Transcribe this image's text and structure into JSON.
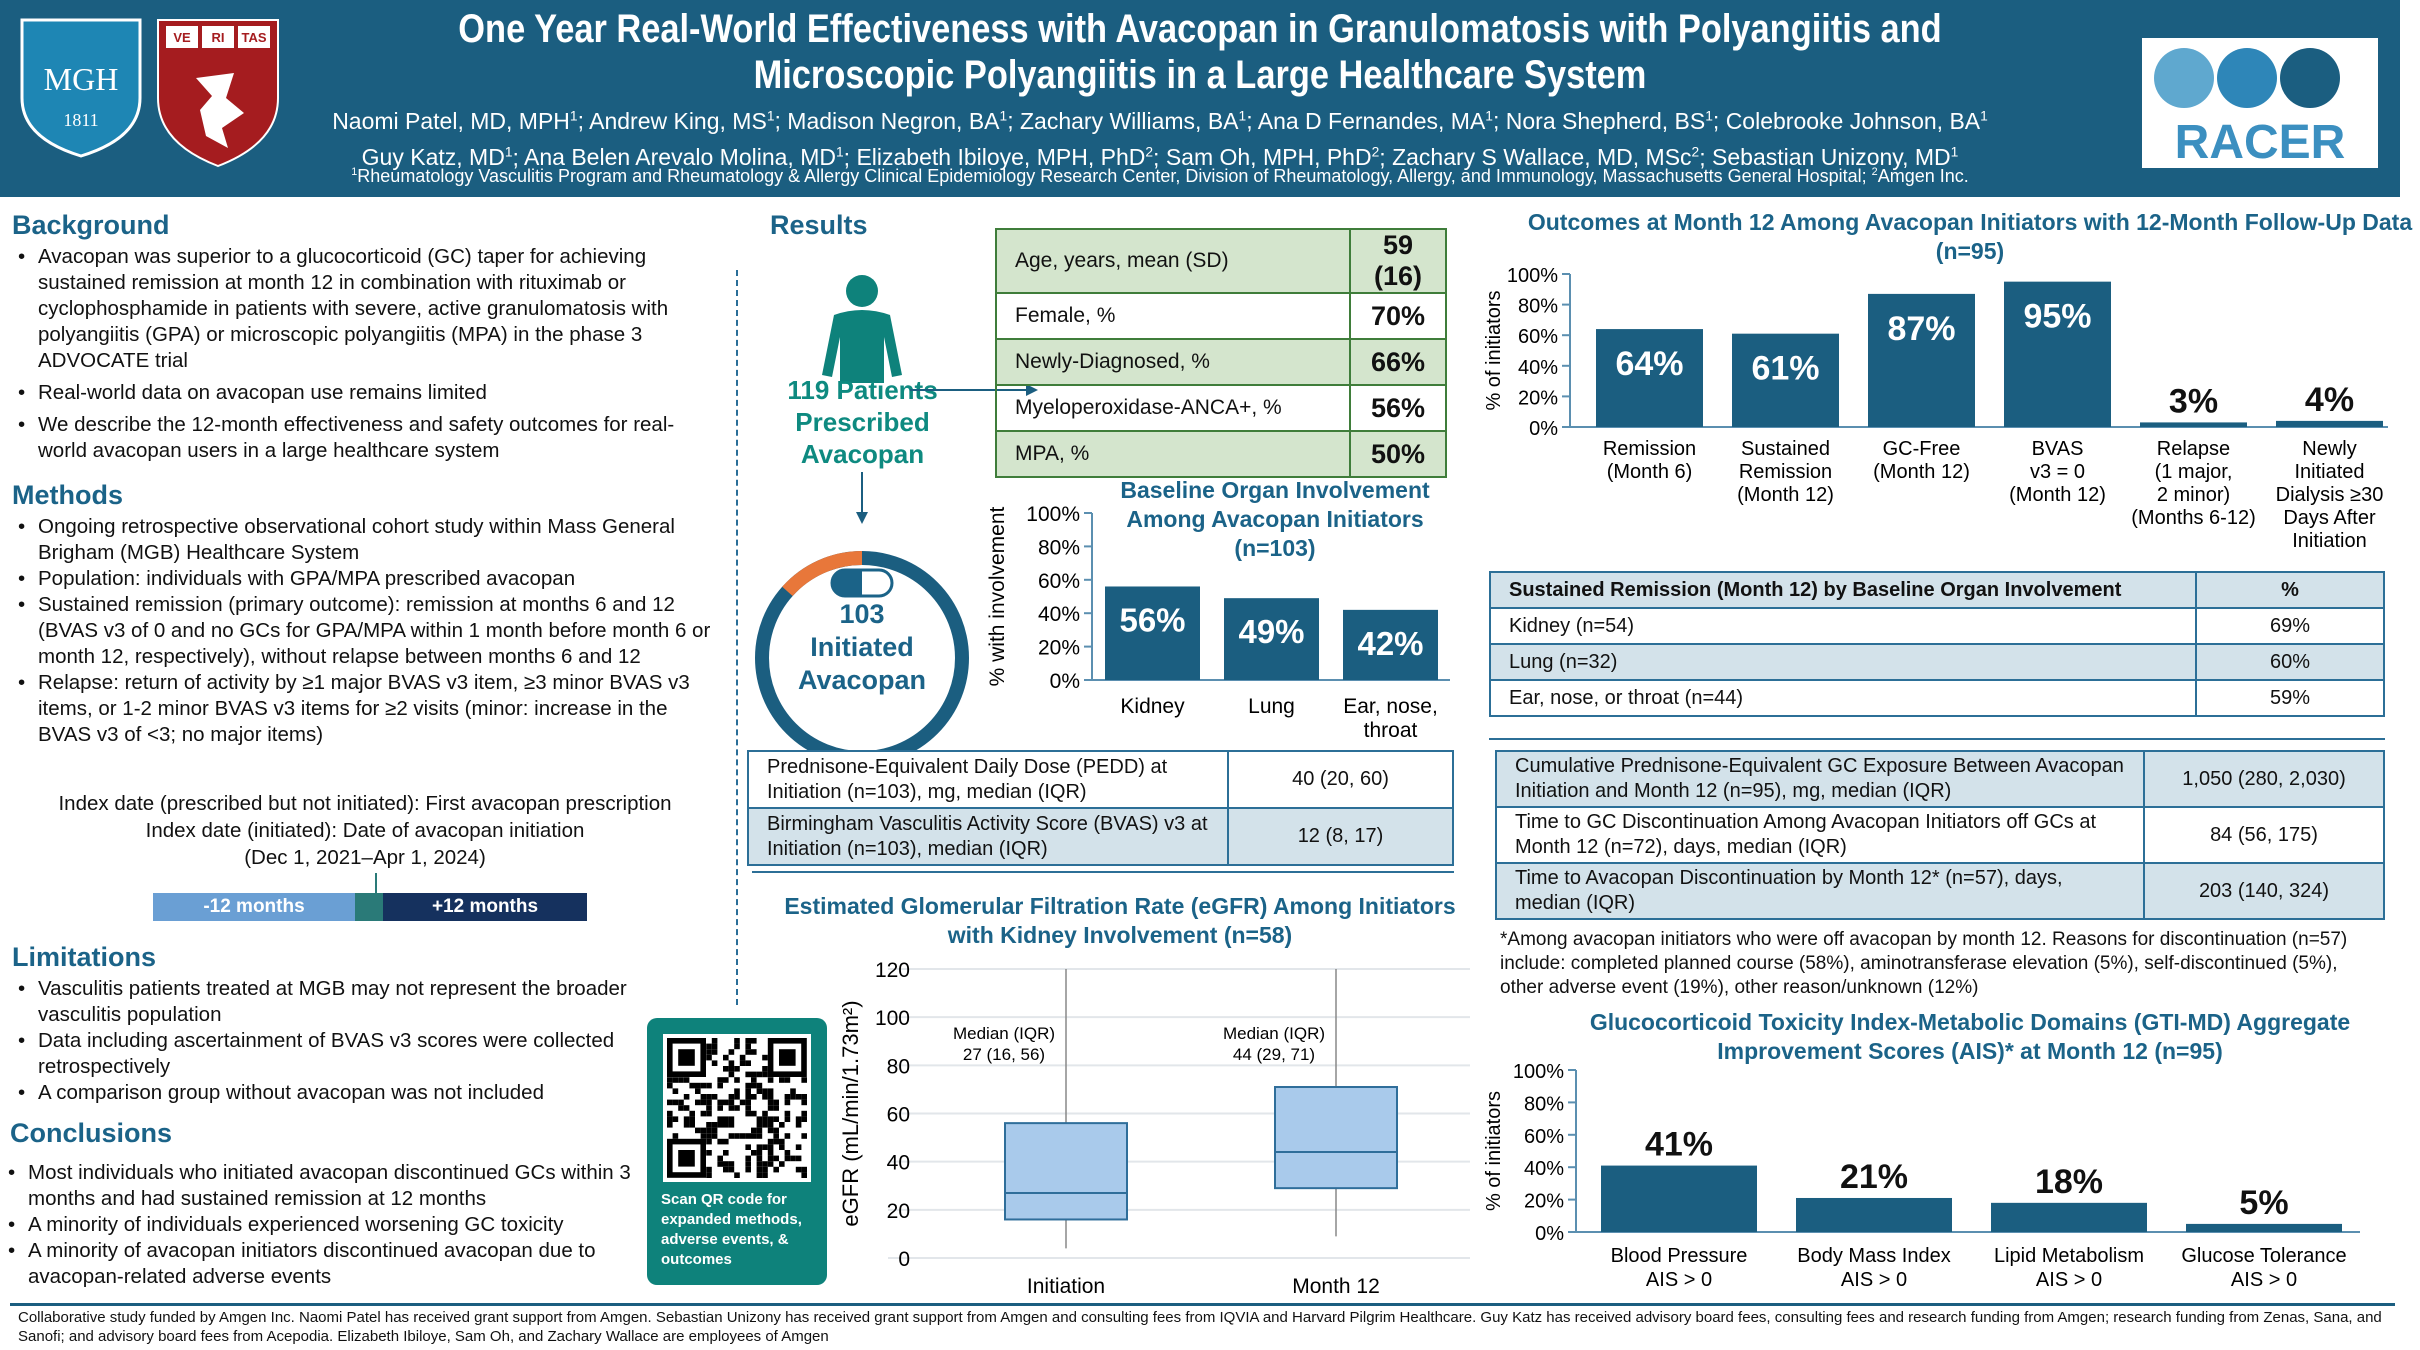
{
  "header": {
    "title_lines": [
      "One Year Real-World Effectiveness with Avacopan in Granulomatosis with Polyangiitis and",
      "Microscopic Polyangiitis in a Large Healthcare System"
    ],
    "authors_line1": [
      [
        "Naomi Patel, MD, MPH",
        "1"
      ],
      [
        "Andrew King, MS",
        "1"
      ],
      [
        "Madison Negron, BA",
        "1"
      ],
      [
        "Zachary Williams, BA",
        "1"
      ],
      [
        "Ana D Fernandes, MA",
        "1"
      ],
      [
        "Nora Shepherd, BS",
        "1"
      ],
      [
        "Colebrooke Johnson, BA",
        "1"
      ]
    ],
    "authors_line2": [
      [
        "Guy Katz, MD",
        "1"
      ],
      [
        "Ana Belen Arevalo Molina, MD",
        "1"
      ],
      [
        "Elizabeth Ibiloye, MPH, PhD",
        "2"
      ],
      [
        "Sam Oh, MPH, PhD",
        "2"
      ],
      [
        "Zachary S Wallace, MD, MSc",
        "2"
      ],
      [
        "Sebastian Unizony, MD",
        "1"
      ]
    ],
    "affiliation_1": "Rheumatology Vasculitis Program and Rheumatology & Allergy Clinical Epidemiology Research Center, Division of Rheumatology, Allergy, and Immunology, Massachusetts General Hospital; ",
    "affiliation_2": "Amgen Inc.",
    "logo_mgh": {
      "text": "MGH",
      "year": "1811"
    },
    "logo_harvard": {
      "text": [
        "VE",
        "RI",
        "TAS"
      ]
    },
    "logo_racer": {
      "text": "RACER"
    }
  },
  "background": {
    "heading": "Background",
    "items": [
      "Avacopan was superior to a glucocorticoid (GC) taper for achieving sustained remission at month 12 in combination with rituximab or cyclophosphamide in patients with severe, active granulomatosis with polyangiitis (GPA) or microscopic polyangiitis (MPA) in the phase 3 ADVOCATE trial",
      "Real-world data on avacopan use remains limited",
      "We describe the 12-month effectiveness and safety outcomes for real-world avacopan users in a large healthcare system"
    ]
  },
  "methods": {
    "heading": "Methods",
    "items": [
      "Ongoing retrospective observational cohort study within Mass General Brigham (MGB) Healthcare System",
      "Population: individuals with GPA/MPA prescribed avacopan",
      "Sustained remission (primary outcome): remission at months 6 and 12 (BVAS v3 of 0 and no GCs for GPA/MPA within 1 month before month 6 or month 12, respectively), without relapse between months 6 and 12",
      "Relapse: return of activity by ≥1 major BVAS v3 item, ≥3 minor BVAS v3 items, or 1-2 minor BVAS v3 items for ≥2 visits (minor: increase in the BVAS v3 of <3; no major items)"
    ],
    "index_lines": [
      "Index date (prescribed but not initiated): First avacopan prescription",
      "Index date (initiated): Date of avacopan initiation",
      "(Dec 1, 2021–Apr 1, 2024)"
    ],
    "timeline": {
      "before": "-12 months",
      "after": "+12 months"
    }
  },
  "limitations": {
    "heading": "Limitations",
    "items": [
      "Vasculitis patients treated at MGB may not represent the broader vasculitis population",
      "Data including ascertainment of BVAS v3 scores were collected retrospectively",
      "A comparison group without avacopan was not included"
    ]
  },
  "conclusions": {
    "heading": "Conclusions",
    "items": [
      "Most individuals who initiated avacopan discontinued GCs within 3 months and had sustained remission at 12 months",
      "A minority of individuals experienced worsening GC toxicity",
      "A minority of avacopan initiators discontinued avacopan due to avacopan-related adverse events"
    ]
  },
  "qr": {
    "caption": "Scan QR code for expanded methods, adverse events, & outcomes"
  },
  "results": {
    "heading": "Results",
    "prescribed": "119 Patients Prescribed Avacopan",
    "initiated_n": "103",
    "initiated_label": "Initiated Avacopan",
    "initiated_fraction": 0.866,
    "demographics": [
      [
        "Age, years, mean (SD)",
        "59 (16)"
      ],
      [
        "Female, %",
        "70%"
      ],
      [
        "Newly-Diagnosed, %",
        "66%"
      ],
      [
        "Myeloperoxidase-ANCA+, %",
        "56%"
      ],
      [
        "MPA, %",
        "50%"
      ]
    ],
    "baseline_table": [
      [
        "Prednisone-Equivalent Daily Dose (PEDD) at Initiation (n=103), mg, median (IQR)",
        "40 (20, 60)"
      ],
      [
        "Birmingham Vasculitis Activity Score (BVAS) v3 at Initiation (n=103), median (IQR)",
        "12 (8, 17)"
      ]
    ],
    "sustained_table": {
      "header": [
        "Sustained Remission (Month 12) by Baseline Organ Involvement",
        "%"
      ],
      "rows": [
        [
          "Kidney (n=54)",
          "69%"
        ],
        [
          "Lung (n=32)",
          "60%"
        ],
        [
          "Ear, nose, or throat (n=44)",
          "59%"
        ]
      ]
    },
    "exposure_table": [
      [
        "Cumulative Prednisone-Equivalent GC Exposure Between Avacopan Initiation and Month 12 (n=95), mg, median (IQR)",
        "1,050 (280, 2,030)"
      ],
      [
        "Time to GC Discontinuation Among Avacopan Initiators off GCs at Month 12 (n=72), days, median (IQR)",
        "84 (56, 175)"
      ],
      [
        "Time to Avacopan Discontinuation by Month 12* (n=57), days, median (IQR)",
        "203 (140, 324)"
      ]
    ],
    "footnote": "*Among avacopan initiators who were off avacopan by month 12. Reasons for discontinuation (n=57) include: completed planned course (58%), aminotransferase elevation (5%), self-discontinued (5%), other adverse event (19%), other reason/unknown (12%)"
  },
  "footer": "Collaborative study funded by Amgen Inc. Naomi Patel has received grant support from Amgen. Sebastian Unizony has received grant support from Amgen and consulting fees from IQVIA and Harvard Pilgrim Healthcare. Guy Katz has received advisory board fees, consulting fees and research funding from Amgen; research funding from Zenas, Sana, and Sanofi; and advisory board fees from Acepodia. Elizabeth Ibiloye, Sam Oh, and Zachary Wallace are employees of Amgen",
  "colors": {
    "primary": "#1b5e80",
    "teal": "#0e8a80",
    "orange": "#e8773a",
    "box": "#a9caeb"
  },
  "chart_data": [
    {
      "type": "bar",
      "title": "Baseline Organ Involvement Among Avacopan Initiators (n=103)",
      "ylabel": "% with involvement",
      "ylim": [
        0,
        100
      ],
      "yticks": [
        "0%",
        "20%",
        "40%",
        "60%",
        "80%",
        "100%"
      ],
      "categories": [
        [
          "Kidney"
        ],
        [
          "Lung"
        ],
        [
          "Ear, nose,",
          "throat"
        ]
      ],
      "values": [
        56,
        49,
        42
      ],
      "data_labels": [
        "56%",
        "49%",
        "42%"
      ]
    },
    {
      "type": "bar",
      "title": "Outcomes at Month 12 Among Avacopan Initiators with 12-Month Follow-Up Data (n=95)",
      "ylabel": "% of initiators",
      "ylim": [
        0,
        100
      ],
      "yticks": [
        "0%",
        "20%",
        "40%",
        "60%",
        "80%",
        "100%"
      ],
      "categories": [
        [
          "Remission",
          "(Month 6)"
        ],
        [
          "Sustained",
          "Remission",
          "(Month 12)"
        ],
        [
          "GC-Free",
          "(Month 12)"
        ],
        [
          "BVAS",
          "v3 = 0",
          "(Month 12)"
        ],
        [
          "Relapse",
          "(1 major,",
          "2 minor)",
          "(Months 6-12)"
        ],
        [
          "Newly",
          "Initiated",
          "Dialysis ≥30",
          "Days After",
          "Initiation"
        ]
      ],
      "values": [
        64,
        61,
        87,
        95,
        3,
        4
      ],
      "data_labels": [
        "64%",
        "61%",
        "87%",
        "95%",
        "3%",
        "4%"
      ]
    },
    {
      "type": "box",
      "title": "Estimated Glomerular Filtration Rate (eGFR) Among Initiators with Kidney Involvement (n=58)",
      "ylabel": "eGFR (mL/min/1.73m²)",
      "ylim": [
        0,
        120
      ],
      "yticks": [
        "0",
        "20",
        "40",
        "60",
        "80",
        "100",
        "120"
      ],
      "grid": true,
      "categories": [
        "Initiation",
        "Month 12"
      ],
      "boxes": [
        {
          "min": 4,
          "q1": 16,
          "median": 27,
          "q3": 56,
          "max": 120
        },
        {
          "min": 9,
          "q1": 29,
          "median": 44,
          "q3": 71,
          "max": 120
        }
      ],
      "annotations": [
        [
          "Median (IQR)",
          "27 (16, 56)"
        ],
        [
          "Median (IQR)",
          "44 (29, 71)"
        ]
      ]
    },
    {
      "type": "bar",
      "title": "Glucocorticoid Toxicity Index-Metabolic Domains (GTI-MD) Aggregate Improvement Scores (AIS)* at Month 12 (n=95)",
      "ylabel": "% of initiators",
      "ylim": [
        0,
        100
      ],
      "yticks": [
        "0%",
        "20%",
        "40%",
        "60%",
        "80%",
        "100%"
      ],
      "categories": [
        [
          "Blood Pressure",
          "AIS > 0"
        ],
        [
          "Body Mass Index",
          "AIS > 0"
        ],
        [
          "Lipid Metabolism",
          "AIS > 0"
        ],
        [
          "Glucose Tolerance",
          "AIS > 0"
        ]
      ],
      "values": [
        41,
        21,
        18,
        5
      ],
      "data_labels": [
        "41%",
        "21%",
        "18%",
        "5%"
      ]
    }
  ]
}
